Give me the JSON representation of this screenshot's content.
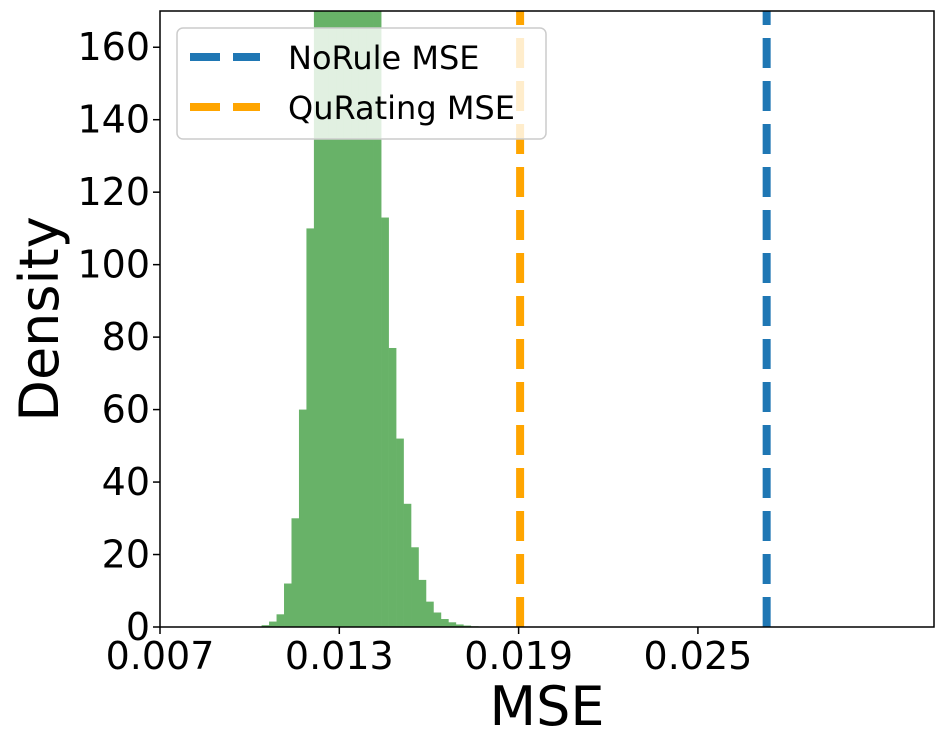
{
  "chart_data": {
    "type": "bar",
    "title": "",
    "xlabel": "MSE",
    "ylabel": "Density",
    "xlim": [
      0.007,
      0.0329
    ],
    "ylim": [
      0,
      170
    ],
    "xticks": [
      {
        "value": 0.007,
        "label": "0.007"
      },
      {
        "value": 0.013,
        "label": "0.013"
      },
      {
        "value": 0.019,
        "label": "0.019"
      },
      {
        "value": 0.025,
        "label": "0.025"
      }
    ],
    "yticks": [
      {
        "value": 0,
        "label": "0"
      },
      {
        "value": 20,
        "label": "20"
      },
      {
        "value": 40,
        "label": "40"
      },
      {
        "value": 60,
        "label": "60"
      },
      {
        "value": 80,
        "label": "80"
      },
      {
        "value": 100,
        "label": "100"
      },
      {
        "value": 120,
        "label": "120"
      },
      {
        "value": 140,
        "label": "140"
      },
      {
        "value": 160,
        "label": "160"
      }
    ],
    "histogram": {
      "color": "#68b268",
      "bin_width": 0.00025,
      "bins": [
        {
          "x0": 0.0104,
          "density": 0.5
        },
        {
          "x0": 0.01065,
          "density": 1.5
        },
        {
          "x0": 0.0109,
          "density": 3.5
        },
        {
          "x0": 0.01115,
          "density": 12
        },
        {
          "x0": 0.0114,
          "density": 30
        },
        {
          "x0": 0.01165,
          "density": 60
        },
        {
          "x0": 0.0119,
          "density": 110
        },
        {
          "x0": 0.01215,
          "density": 170
        },
        {
          "x0": 0.0124,
          "density": 170
        },
        {
          "x0": 0.01265,
          "density": 170
        },
        {
          "x0": 0.0129,
          "density": 170
        },
        {
          "x0": 0.01315,
          "density": 170
        },
        {
          "x0": 0.0134,
          "density": 170
        },
        {
          "x0": 0.01365,
          "density": 170
        },
        {
          "x0": 0.0139,
          "density": 170
        },
        {
          "x0": 0.01415,
          "density": 170
        },
        {
          "x0": 0.0144,
          "density": 113
        },
        {
          "x0": 0.01465,
          "density": 77
        },
        {
          "x0": 0.0149,
          "density": 52
        },
        {
          "x0": 0.01515,
          "density": 34
        },
        {
          "x0": 0.0154,
          "density": 22
        },
        {
          "x0": 0.01565,
          "density": 13
        },
        {
          "x0": 0.0159,
          "density": 7
        },
        {
          "x0": 0.01615,
          "density": 4
        },
        {
          "x0": 0.0164,
          "density": 2.2
        },
        {
          "x0": 0.01665,
          "density": 1.3
        },
        {
          "x0": 0.0169,
          "density": 0.7
        },
        {
          "x0": 0.01715,
          "density": 0.4
        },
        {
          "x0": 0.0174,
          "density": 0.2
        }
      ]
    },
    "reference_lines": [
      {
        "name": "NoRule MSE",
        "x": 0.0273,
        "color": "#1f77b4",
        "style": "dashed"
      },
      {
        "name": "QuRating MSE",
        "x": 0.01905,
        "color": "#ffa500",
        "style": "dashed"
      }
    ],
    "legend": {
      "placement": "top-left",
      "entries": [
        "NoRule MSE",
        "QuRating MSE"
      ]
    },
    "grid": false
  }
}
